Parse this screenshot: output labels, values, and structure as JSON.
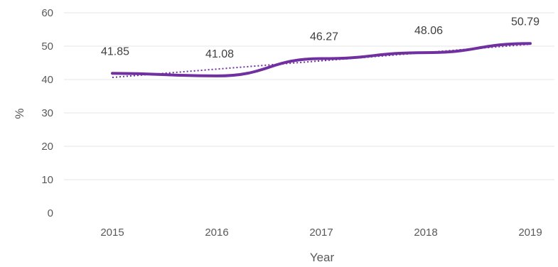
{
  "chart_data": {
    "type": "line",
    "categories": [
      "2015",
      "2016",
      "2017",
      "2018",
      "2019"
    ],
    "x": [
      2015,
      2016,
      2017,
      2018,
      2019
    ],
    "series": [
      {
        "values": [
          41.85,
          41.08,
          46.27,
          48.06,
          50.79
        ],
        "labels": [
          "41.85",
          "41.08",
          "46.27",
          "48.06",
          "50.79"
        ],
        "color": "#7030a0"
      }
    ],
    "trendline": {
      "style": "dotted",
      "color": "#7030a0"
    },
    "xlabel": "Year",
    "ylabel": "%",
    "ylim": [
      0,
      60
    ],
    "yticks": [
      "0",
      "10",
      "20",
      "30",
      "40",
      "50",
      "60"
    ],
    "grid": true,
    "legend": "none"
  }
}
